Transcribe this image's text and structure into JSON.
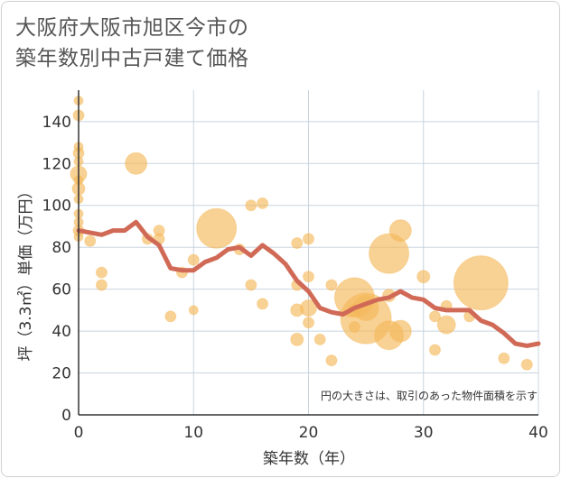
{
  "title_line1": "大阪府大阪市旭区今市の",
  "title_line2": "築年数別中古戸建て価格",
  "chart_data": {
    "type": "scatter",
    "title": "大阪府大阪市旭区今市の築年数別中古戸建て価格",
    "xlabel": "築年数（年）",
    "ylabel": "坪（3.3㎡）単価（万円）",
    "xlim": [
      0,
      40
    ],
    "ylim": [
      0,
      155
    ],
    "xticks": [
      0,
      10,
      20,
      30,
      40
    ],
    "yticks": [
      0,
      20,
      40,
      60,
      80,
      100,
      120,
      140
    ],
    "grid": true,
    "note": "円の大きさは、取引のあった物件面積を示す",
    "colors": {
      "bubble": "#f5b85a",
      "line": "#d06a56",
      "grid": "#c8d4e0"
    },
    "bubbles": [
      {
        "x": 0,
        "y": 150,
        "s": 5
      },
      {
        "x": 0,
        "y": 143,
        "s": 6
      },
      {
        "x": 0,
        "y": 128,
        "s": 5
      },
      {
        "x": 0,
        "y": 125,
        "s": 6
      },
      {
        "x": 0,
        "y": 121,
        "s": 5
      },
      {
        "x": 0,
        "y": 115,
        "s": 9
      },
      {
        "x": 0,
        "y": 112,
        "s": 5
      },
      {
        "x": 0,
        "y": 108,
        "s": 7
      },
      {
        "x": 0,
        "y": 103,
        "s": 5
      },
      {
        "x": 0,
        "y": 96,
        "s": 5
      },
      {
        "x": 0,
        "y": 92,
        "s": 5
      },
      {
        "x": 0,
        "y": 88,
        "s": 6
      },
      {
        "x": 0,
        "y": 85,
        "s": 5
      },
      {
        "x": 1,
        "y": 83,
        "s": 6
      },
      {
        "x": 2,
        "y": 68,
        "s": 6
      },
      {
        "x": 2,
        "y": 62,
        "s": 6
      },
      {
        "x": 5,
        "y": 120,
        "s": 12
      },
      {
        "x": 6,
        "y": 84,
        "s": 6
      },
      {
        "x": 7,
        "y": 88,
        "s": 6
      },
      {
        "x": 7,
        "y": 84,
        "s": 6
      },
      {
        "x": 8,
        "y": 47,
        "s": 6
      },
      {
        "x": 9,
        "y": 68,
        "s": 6
      },
      {
        "x": 10,
        "y": 74,
        "s": 6
      },
      {
        "x": 10,
        "y": 50,
        "s": 5
      },
      {
        "x": 12,
        "y": 89,
        "s": 22
      },
      {
        "x": 14,
        "y": 79,
        "s": 6
      },
      {
        "x": 15,
        "y": 100,
        "s": 6
      },
      {
        "x": 15,
        "y": 62,
        "s": 6
      },
      {
        "x": 16,
        "y": 101,
        "s": 6
      },
      {
        "x": 16,
        "y": 53,
        "s": 6
      },
      {
        "x": 19,
        "y": 82,
        "s": 6
      },
      {
        "x": 19,
        "y": 62,
        "s": 6
      },
      {
        "x": 19,
        "y": 50,
        "s": 7
      },
      {
        "x": 19,
        "y": 36,
        "s": 7
      },
      {
        "x": 20,
        "y": 84,
        "s": 6
      },
      {
        "x": 20,
        "y": 66,
        "s": 6
      },
      {
        "x": 20,
        "y": 51,
        "s": 9
      },
      {
        "x": 20,
        "y": 44,
        "s": 6
      },
      {
        "x": 21,
        "y": 36,
        "s": 6
      },
      {
        "x": 22,
        "y": 26,
        "s": 6
      },
      {
        "x": 22,
        "y": 62,
        "s": 6
      },
      {
        "x": 24,
        "y": 56,
        "s": 22
      },
      {
        "x": 24,
        "y": 50,
        "s": 7
      },
      {
        "x": 24,
        "y": 42,
        "s": 6
      },
      {
        "x": 25,
        "y": 51,
        "s": 14
      },
      {
        "x": 25,
        "y": 46,
        "s": 28
      },
      {
        "x": 27,
        "y": 77,
        "s": 22
      },
      {
        "x": 27,
        "y": 57,
        "s": 7
      },
      {
        "x": 27,
        "y": 38,
        "s": 16
      },
      {
        "x": 28,
        "y": 88,
        "s": 12
      },
      {
        "x": 28,
        "y": 40,
        "s": 12
      },
      {
        "x": 30,
        "y": 66,
        "s": 7
      },
      {
        "x": 31,
        "y": 47,
        "s": 6
      },
      {
        "x": 31,
        "y": 31,
        "s": 6
      },
      {
        "x": 32,
        "y": 52,
        "s": 6
      },
      {
        "x": 32,
        "y": 43,
        "s": 10
      },
      {
        "x": 35,
        "y": 63,
        "s": 30
      },
      {
        "x": 34,
        "y": 47,
        "s": 6
      },
      {
        "x": 37,
        "y": 27,
        "s": 6
      },
      {
        "x": 39,
        "y": 24,
        "s": 6
      }
    ],
    "trend_line": [
      {
        "x": 0,
        "y": 88
      },
      {
        "x": 1,
        "y": 87
      },
      {
        "x": 2,
        "y": 86
      },
      {
        "x": 3,
        "y": 88
      },
      {
        "x": 4,
        "y": 88
      },
      {
        "x": 5,
        "y": 92
      },
      {
        "x": 6,
        "y": 85
      },
      {
        "x": 7,
        "y": 81
      },
      {
        "x": 8,
        "y": 70
      },
      {
        "x": 9,
        "y": 69
      },
      {
        "x": 10,
        "y": 69
      },
      {
        "x": 11,
        "y": 73
      },
      {
        "x": 12,
        "y": 75
      },
      {
        "x": 13,
        "y": 79
      },
      {
        "x": 14,
        "y": 80
      },
      {
        "x": 15,
        "y": 76
      },
      {
        "x": 16,
        "y": 81
      },
      {
        "x": 17,
        "y": 77
      },
      {
        "x": 18,
        "y": 72
      },
      {
        "x": 19,
        "y": 64
      },
      {
        "x": 20,
        "y": 59
      },
      {
        "x": 21,
        "y": 51
      },
      {
        "x": 22,
        "y": 49
      },
      {
        "x": 23,
        "y": 48
      },
      {
        "x": 24,
        "y": 51
      },
      {
        "x": 25,
        "y": 53
      },
      {
        "x": 26,
        "y": 55
      },
      {
        "x": 27,
        "y": 56
      },
      {
        "x": 28,
        "y": 59
      },
      {
        "x": 29,
        "y": 56
      },
      {
        "x": 30,
        "y": 55
      },
      {
        "x": 31,
        "y": 51
      },
      {
        "x": 32,
        "y": 50
      },
      {
        "x": 33,
        "y": 50
      },
      {
        "x": 34,
        "y": 50
      },
      {
        "x": 35,
        "y": 45
      },
      {
        "x": 36,
        "y": 43
      },
      {
        "x": 37,
        "y": 39
      },
      {
        "x": 38,
        "y": 34
      },
      {
        "x": 39,
        "y": 33
      },
      {
        "x": 40,
        "y": 34
      }
    ]
  }
}
